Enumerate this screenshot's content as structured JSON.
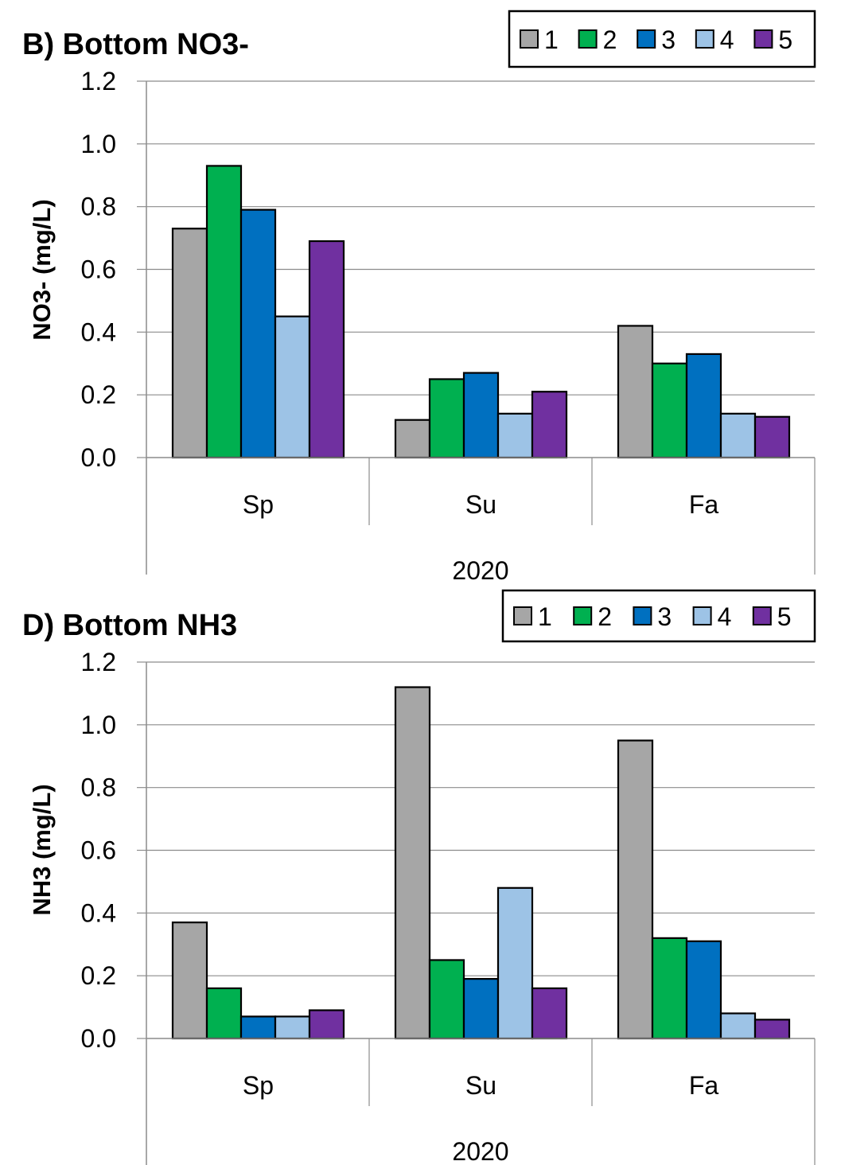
{
  "chart_data": [
    {
      "type": "bar",
      "title": "B) Bottom NO3-",
      "ylabel": "NO3- (mg/L)",
      "xgroup_label": "2020",
      "categories": [
        "Sp",
        "Su",
        "Fa"
      ],
      "ylim": [
        0,
        1.2
      ],
      "yticks": [
        "0.0",
        "0.2",
        "0.4",
        "0.6",
        "0.8",
        "1.0",
        "1.2"
      ],
      "grid": true,
      "legend_position": "top-right",
      "series": [
        {
          "name": "1",
          "color": "#a6a6a6",
          "values": [
            0.73,
            0.12,
            0.42
          ]
        },
        {
          "name": "2",
          "color": "#00b050",
          "values": [
            0.93,
            0.25,
            0.3
          ]
        },
        {
          "name": "3",
          "color": "#0070c0",
          "values": [
            0.79,
            0.27,
            0.33
          ]
        },
        {
          "name": "4",
          "color": "#9dc3e6",
          "values": [
            0.45,
            0.14,
            0.14
          ]
        },
        {
          "name": "5",
          "color": "#7030a0",
          "values": [
            0.69,
            0.21,
            0.13
          ]
        }
      ]
    },
    {
      "type": "bar",
      "title": "D) Bottom NH3",
      "ylabel": "NH3 (mg/L)",
      "xgroup_label": "2020",
      "categories": [
        "Sp",
        "Su",
        "Fa"
      ],
      "ylim": [
        0,
        1.2
      ],
      "yticks": [
        "0.0",
        "0.2",
        "0.4",
        "0.6",
        "0.8",
        "1.0",
        "1.2"
      ],
      "grid": true,
      "legend_position": "top-right",
      "series": [
        {
          "name": "1",
          "color": "#a6a6a6",
          "values": [
            0.37,
            1.12,
            0.95
          ]
        },
        {
          "name": "2",
          "color": "#00b050",
          "values": [
            0.16,
            0.25,
            0.32
          ]
        },
        {
          "name": "3",
          "color": "#0070c0",
          "values": [
            0.07,
            0.19,
            0.31
          ]
        },
        {
          "name": "4",
          "color": "#9dc3e6",
          "values": [
            0.07,
            0.48,
            0.08
          ]
        },
        {
          "name": "5",
          "color": "#7030a0",
          "values": [
            0.09,
            0.16,
            0.06
          ]
        }
      ]
    }
  ]
}
